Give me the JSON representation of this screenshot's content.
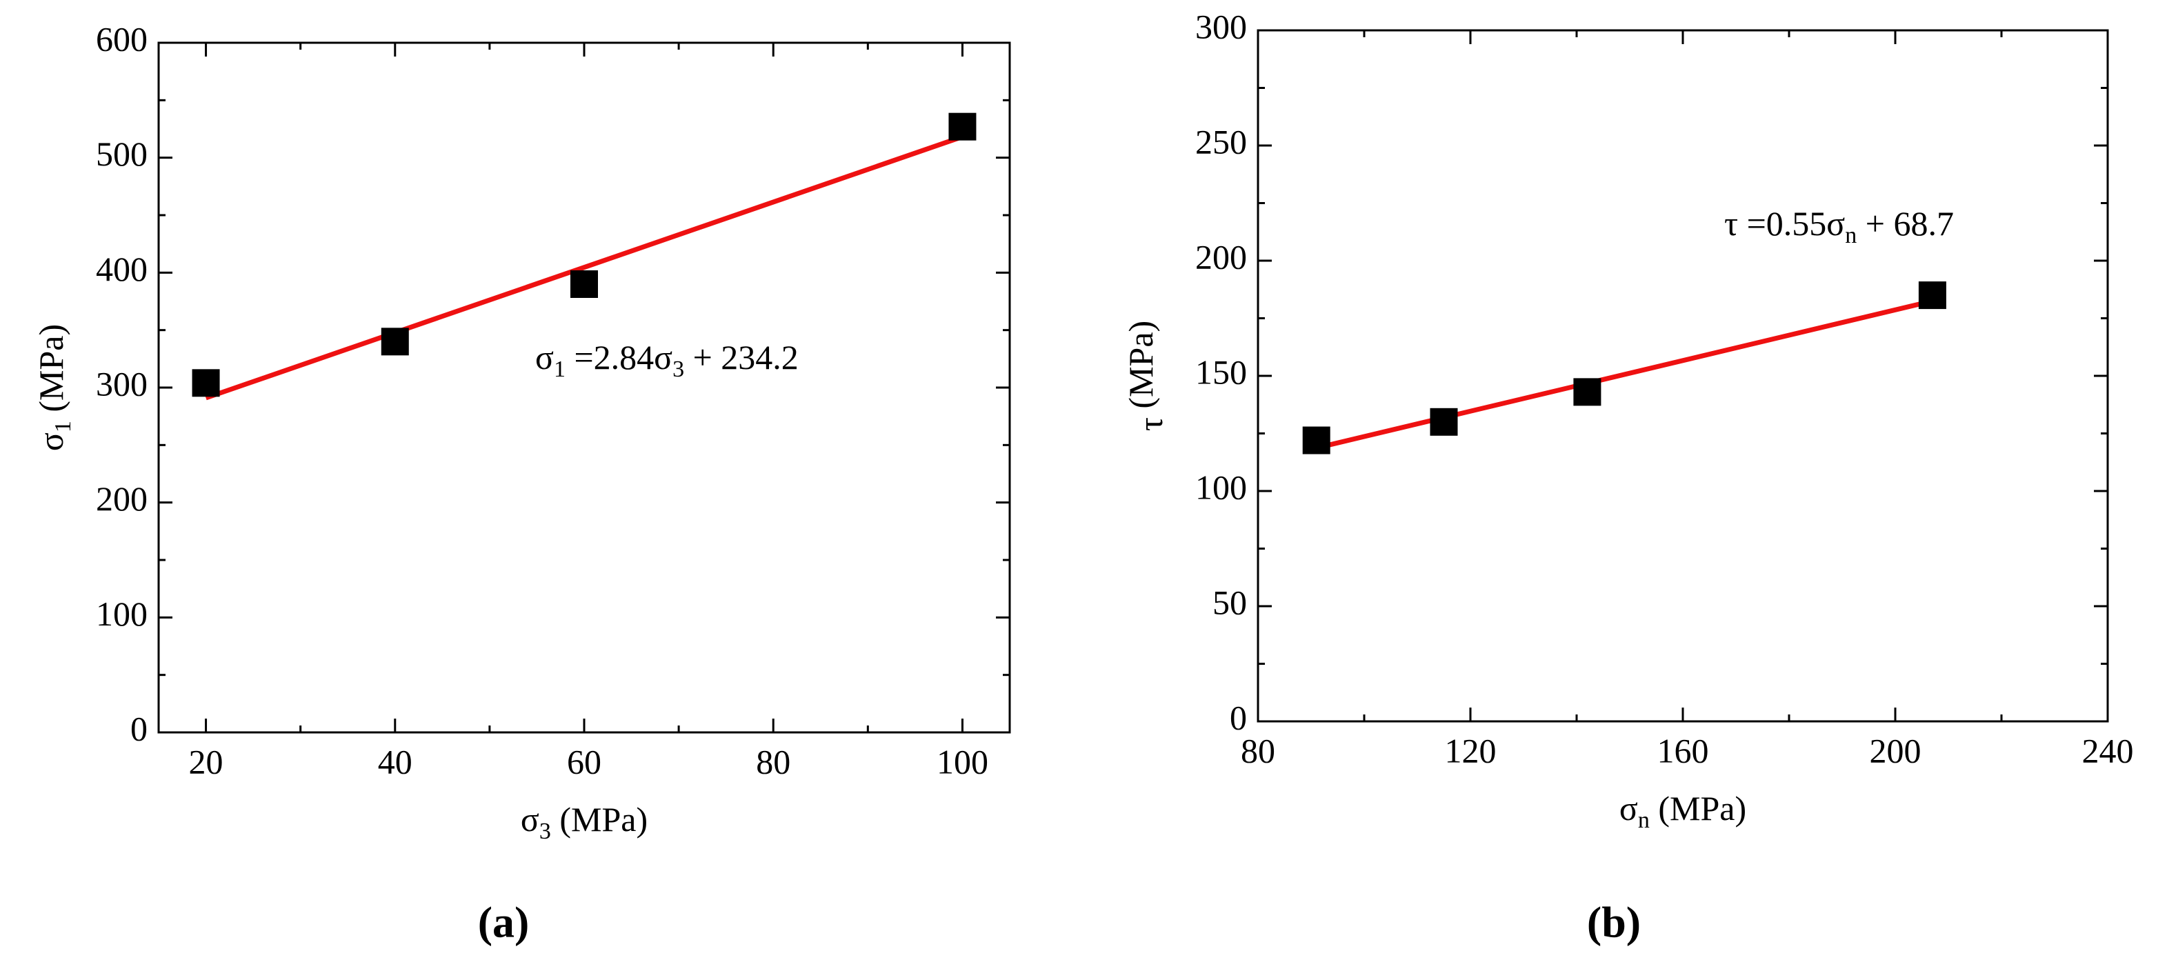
{
  "chart_data": [
    {
      "type": "scatter",
      "caption": "(a)",
      "xlabel": [
        "σ",
        "3",
        " (MPa)"
      ],
      "ylabel": [
        "σ",
        "1",
        " (MPa)"
      ],
      "annotation": [
        "σ",
        "1",
        " =2.84σ",
        "3",
        " + 234.2"
      ],
      "xlim": [
        15,
        105
      ],
      "xticks": [
        20,
        40,
        60,
        80,
        100
      ],
      "ylim": [
        0,
        600
      ],
      "yticks": [
        0,
        100,
        200,
        300,
        400,
        500,
        600
      ],
      "series": [
        {
          "color": "#000000",
          "marker": "square",
          "x": [
            20,
            40,
            60,
            100
          ],
          "values": [
            304,
            340,
            390,
            527
          ]
        },
        {
          "color": "#ee1111",
          "marker": "line",
          "x": [
            20,
            100
          ],
          "values": [
            291,
            518.2
          ]
        }
      ]
    },
    {
      "type": "scatter",
      "caption": "(b)",
      "xlabel": [
        "σ",
        "n",
        " (MPa)"
      ],
      "ylabel": [
        "τ",
        "",
        " (MPa)"
      ],
      "annotation": [
        "τ =0.55σ",
        "n",
        " + 68.7"
      ],
      "xlim": [
        80,
        240
      ],
      "xticks": [
        80,
        120,
        160,
        200,
        240
      ],
      "ylim": [
        0,
        300
      ],
      "yticks": [
        0,
        50,
        100,
        150,
        200,
        250,
        300
      ],
      "series": [
        {
          "color": "#000000",
          "marker": "square",
          "x": [
            91,
            115,
            142,
            207
          ],
          "values": [
            122,
            130,
            143,
            185
          ]
        },
        {
          "color": "#ee1111",
          "marker": "line",
          "x": [
            91,
            207
          ],
          "values": [
            118.7,
            182.5
          ]
        }
      ]
    }
  ]
}
